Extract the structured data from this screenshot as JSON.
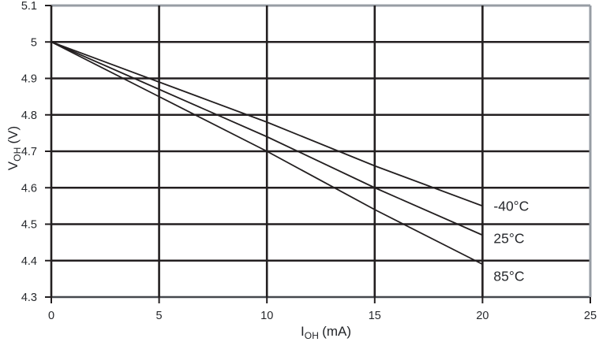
{
  "chart_data": {
    "type": "line",
    "title": "",
    "xlabel_parts": {
      "base": "I",
      "sub": "OH",
      "unit": "(mA)"
    },
    "ylabel_parts": {
      "base": "V",
      "sub": "OH",
      "unit": "(V)"
    },
    "xlim": [
      0,
      25
    ],
    "ylim": [
      4.3,
      5.1
    ],
    "x_ticks": [
      "0",
      "5",
      "10",
      "15",
      "20",
      "25"
    ],
    "y_ticks": [
      "5.1",
      "5",
      "4.9",
      "4.8",
      "4.7",
      "4.6",
      "4.5",
      "4.4",
      "4.3"
    ],
    "grid": true,
    "legend_position": "inline-right-of-lines",
    "x": [
      0,
      5,
      10,
      15,
      20
    ],
    "series": [
      {
        "name": "-40°C",
        "values": [
          5.0,
          4.89,
          4.78,
          4.66,
          4.55
        ]
      },
      {
        "name": "25°C",
        "values": [
          5.0,
          4.87,
          4.74,
          4.6,
          4.47
        ]
      },
      {
        "name": "85°C",
        "values": [
          5.0,
          4.85,
          4.7,
          4.54,
          4.39
        ]
      }
    ],
    "colors": {
      "line": "#231f20",
      "grid": "#231f20",
      "frame_gray": "#979da4",
      "text": "#26282c"
    }
  }
}
